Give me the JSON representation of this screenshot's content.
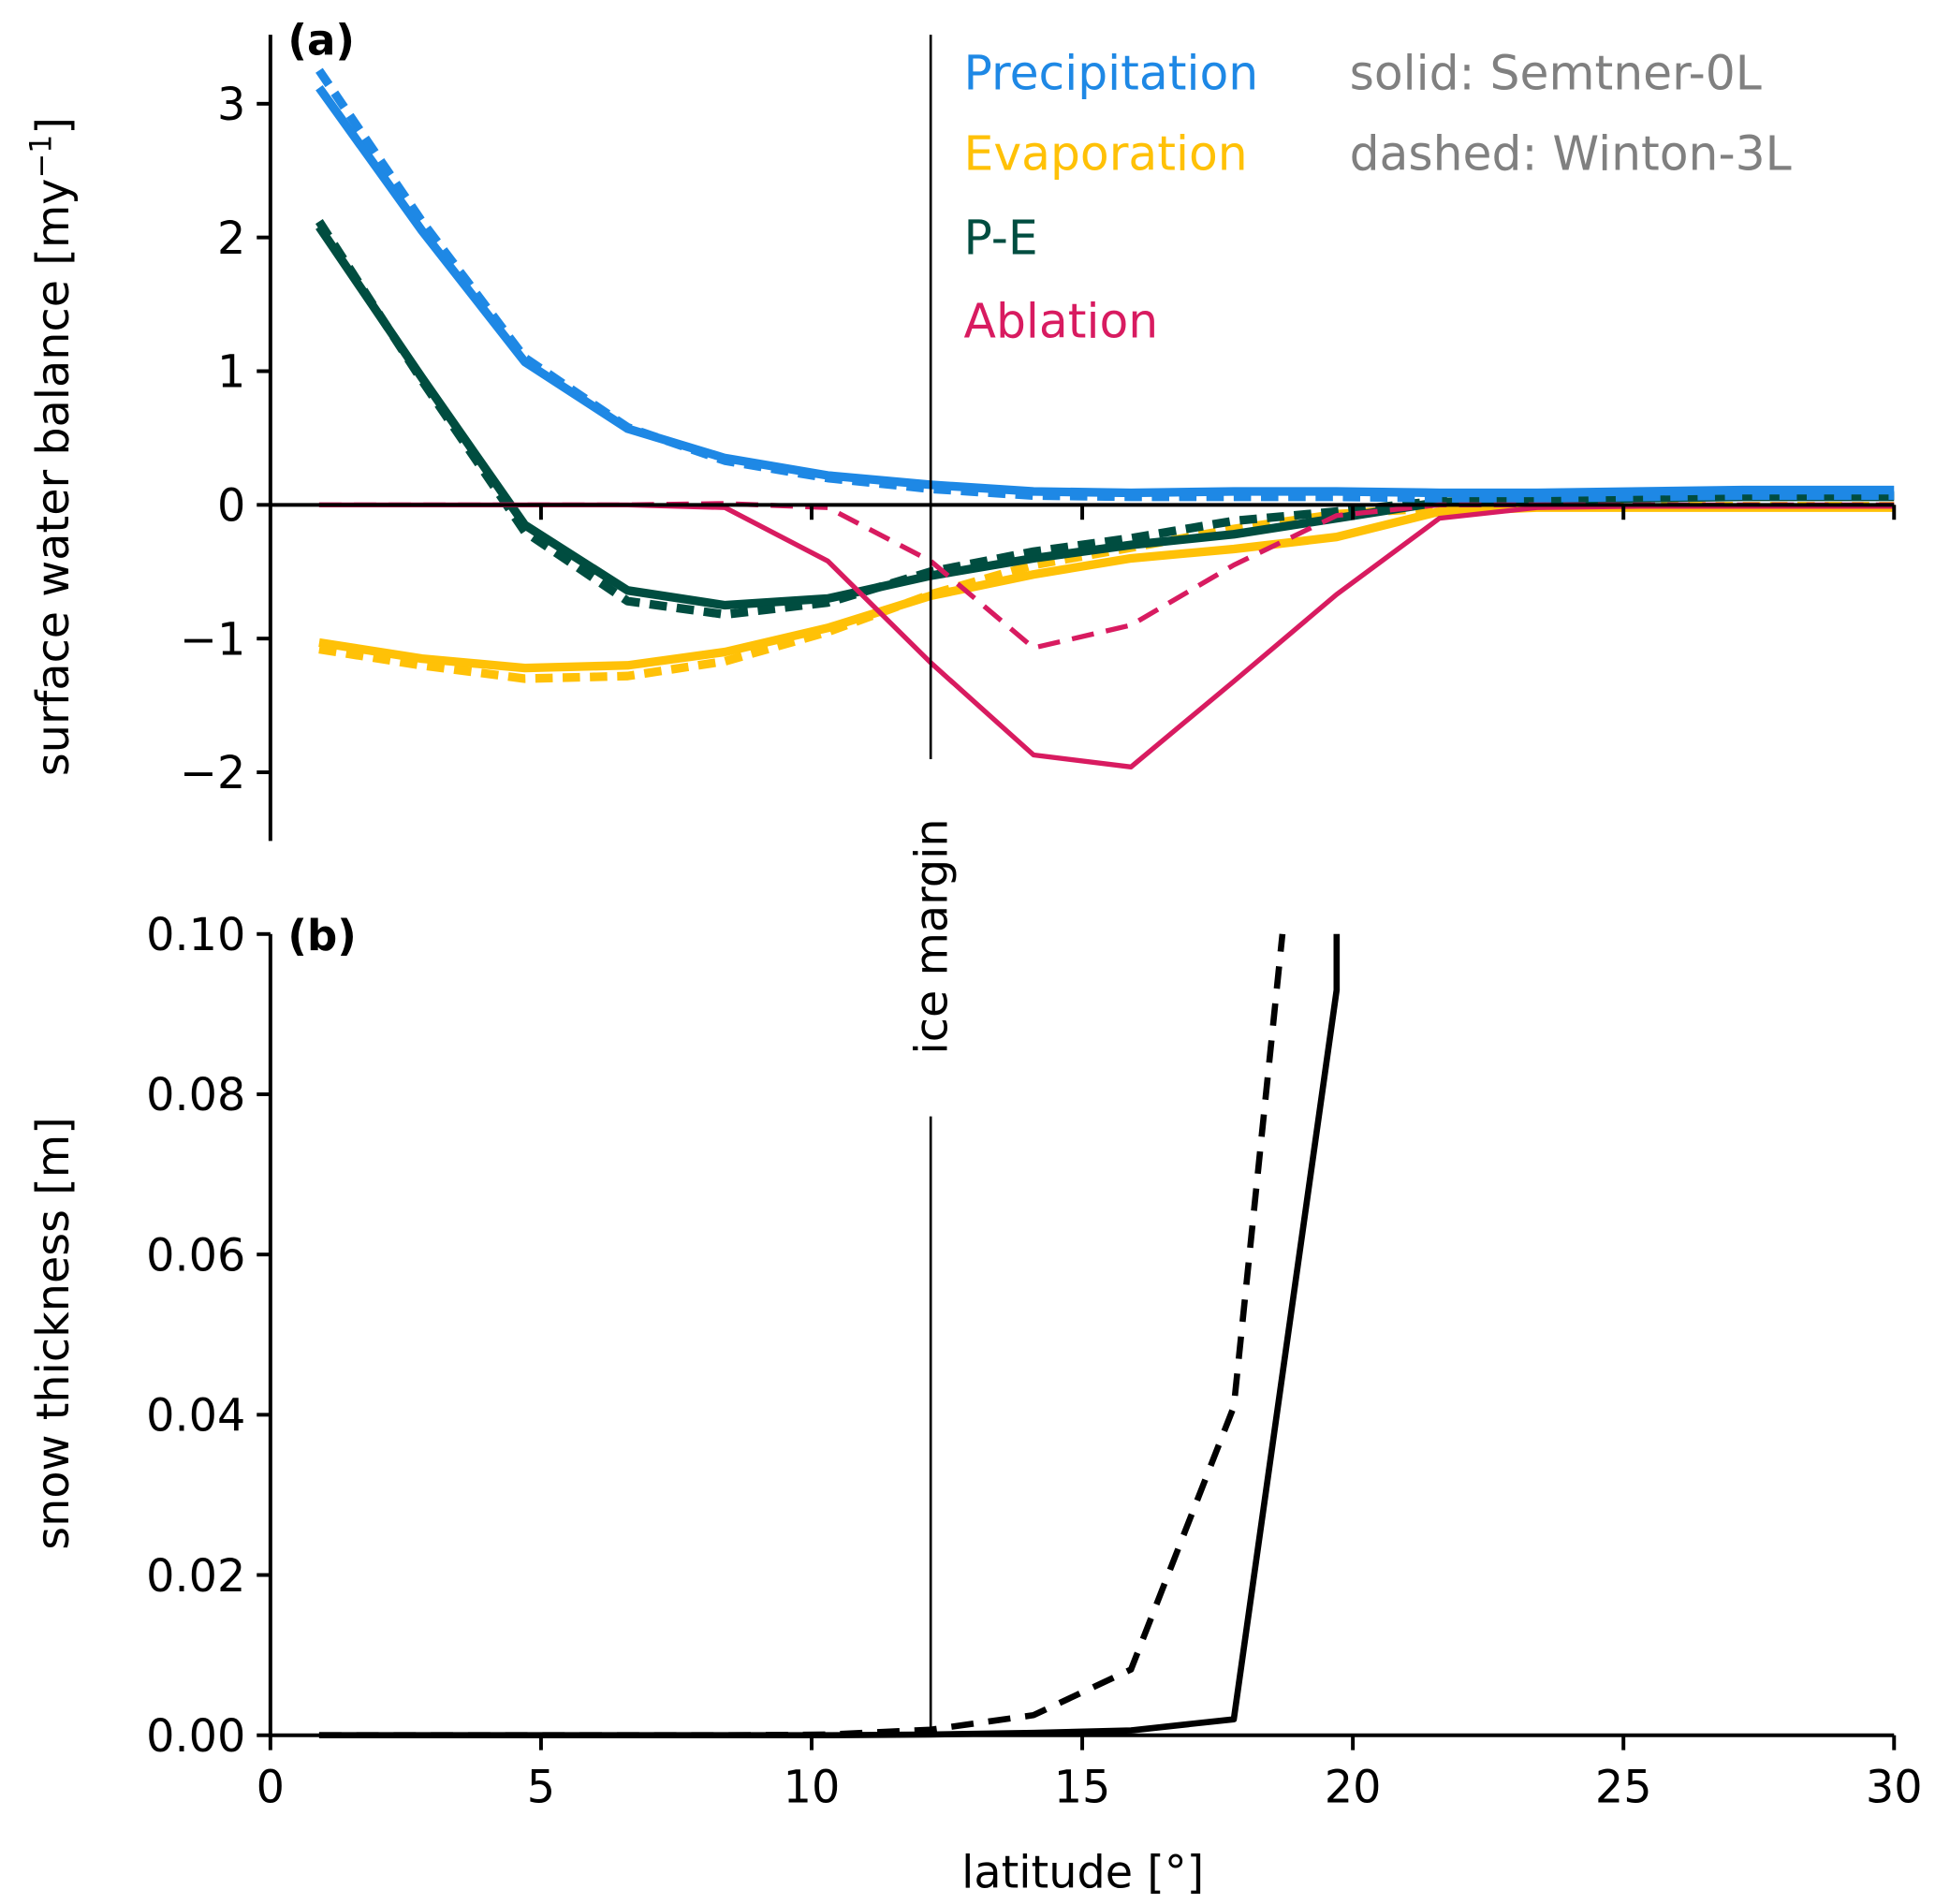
{
  "chart_data": [
    {
      "panel": "(a)",
      "type": "line",
      "xlabel": "",
      "ylabel": "surface water balance [my",
      "ylabel_sup": "−1",
      "ylabel_close": "]",
      "xlim": [
        0,
        30
      ],
      "ylim": [
        -2.5,
        3.5
      ],
      "yticks": [
        3,
        2,
        1,
        0,
        -1,
        -2
      ],
      "ytick_labels": [
        "3",
        "2",
        "1",
        "0",
        "−1",
        "−2"
      ],
      "xticks": [
        0,
        5,
        10,
        15,
        20,
        25,
        30
      ],
      "grid": false,
      "legend_placement": "top-right",
      "zero_line": true,
      "vline": {
        "x": 12.2,
        "label": "ice margin"
      },
      "x": [
        0.9,
        2.8,
        4.7,
        6.6,
        8.4,
        10.3,
        12.2,
        14.1,
        15.9,
        17.8,
        19.7,
        21.6,
        23.4,
        25.3,
        27.2,
        29.1,
        30.0
      ],
      "series": [
        {
          "name": "Precipitation",
          "style": "solid",
          "model": "Semtner-0L",
          "color": "#1e88e5",
          "values": [
            3.12,
            2.05,
            1.07,
            0.57,
            0.35,
            0.22,
            0.15,
            0.1,
            0.09,
            0.1,
            0.1,
            0.09,
            0.09,
            0.1,
            0.11,
            0.11,
            0.11
          ]
        },
        {
          "name": "Precipitation",
          "style": "dashed",
          "model": "Winton-3L",
          "color": "#1e88e5",
          "values": [
            3.25,
            2.12,
            1.1,
            0.58,
            0.33,
            0.2,
            0.12,
            0.07,
            0.06,
            0.06,
            0.06,
            0.05,
            0.05,
            0.06,
            0.07,
            0.07,
            0.07
          ]
        },
        {
          "name": "Evaporation",
          "style": "solid",
          "model": "Semtner-0L",
          "color": "#ffc107",
          "values": [
            -1.03,
            -1.15,
            -1.22,
            -1.2,
            -1.1,
            -0.92,
            -0.68,
            -0.52,
            -0.4,
            -0.33,
            -0.24,
            -0.05,
            -0.02,
            -0.02,
            -0.02,
            -0.02,
            -0.02
          ]
        },
        {
          "name": "Evaporation",
          "style": "dashed",
          "model": "Winton-3L",
          "color": "#ffc107",
          "values": [
            -1.08,
            -1.2,
            -1.3,
            -1.28,
            -1.17,
            -0.95,
            -0.67,
            -0.45,
            -0.32,
            -0.18,
            -0.07,
            -0.02,
            -0.01,
            -0.01,
            -0.01,
            -0.01,
            -0.01
          ]
        },
        {
          "name": "P-E",
          "style": "solid",
          "model": "Semtner-0L",
          "color": "#004d40",
          "values": [
            2.08,
            0.95,
            -0.15,
            -0.64,
            -0.75,
            -0.7,
            -0.53,
            -0.4,
            -0.3,
            -0.22,
            -0.1,
            0.02,
            0.04,
            0.05,
            0.06,
            0.06,
            0.06
          ]
        },
        {
          "name": "P-E",
          "style": "dashed",
          "model": "Winton-3L",
          "color": "#004d40",
          "values": [
            2.12,
            0.93,
            -0.2,
            -0.72,
            -0.82,
            -0.73,
            -0.5,
            -0.35,
            -0.25,
            -0.12,
            -0.05,
            0.03,
            0.05,
            0.06,
            0.07,
            0.07,
            0.07
          ]
        },
        {
          "name": "Ablation",
          "style": "solid",
          "model": "Semtner-0L",
          "color": "#d81b60",
          "values": [
            0.0,
            0.0,
            0.0,
            0.0,
            -0.02,
            -0.42,
            -1.18,
            -1.87,
            -1.96,
            -1.32,
            -0.67,
            -0.1,
            -0.02,
            -0.01,
            -0.01,
            -0.01,
            -0.01
          ]
        },
        {
          "name": "Ablation",
          "style": "dashed",
          "model": "Winton-3L",
          "color": "#d81b60",
          "values": [
            0.0,
            0.0,
            0.0,
            0.0,
            0.01,
            -0.02,
            -0.42,
            -1.07,
            -0.9,
            -0.45,
            -0.08,
            0.0,
            0.0,
            0.0,
            0.0,
            0.0,
            0.0
          ]
        }
      ],
      "legend": {
        "entries": [
          {
            "label": "Precipitation",
            "color": "#1e88e5"
          },
          {
            "label": "Evaporation",
            "color": "#ffc107"
          },
          {
            "label": "P-E",
            "color": "#004d40"
          },
          {
            "label": "Ablation",
            "color": "#d81b60"
          }
        ],
        "style_notes": [
          {
            "label": "solid: Semtner-0L",
            "color": "#808080"
          },
          {
            "label": "dashed: Winton-3L",
            "color": "#808080"
          }
        ]
      }
    },
    {
      "panel": "(b)",
      "type": "line",
      "xlabel": "latitude [°]",
      "ylabel": "snow thickness [m]",
      "xlim": [
        0,
        30
      ],
      "ylim": [
        0,
        0.1
      ],
      "yticks": [
        0.0,
        0.02,
        0.04,
        0.06,
        0.08,
        0.1
      ],
      "ytick_labels": [
        "0.00",
        "0.02",
        "0.04",
        "0.06",
        "0.08",
        "0.10"
      ],
      "xticks": [
        0,
        5,
        10,
        15,
        20,
        25,
        30
      ],
      "xtick_labels": [
        "0",
        "5",
        "10",
        "15",
        "20",
        "25",
        "30"
      ],
      "grid": false,
      "vline": {
        "x": 12.2,
        "label": "ice margin"
      },
      "series": [
        {
          "name": "snow thickness",
          "style": "solid",
          "model": "Semtner-0L",
          "color": "#000000",
          "x": [
            0.9,
            2.8,
            4.7,
            6.6,
            8.4,
            10.3,
            12.2,
            14.1,
            15.9,
            17.8,
            19.7,
            19.7
          ],
          "values": [
            0.0,
            0.0,
            0.0,
            0.0,
            0.0,
            0.0,
            0.0001,
            0.0003,
            0.0006,
            0.002,
            0.093,
            0.1
          ]
        },
        {
          "name": "snow thickness",
          "style": "dashed",
          "model": "Winton-3L",
          "color": "#000000",
          "x": [
            0.9,
            2.8,
            4.7,
            6.6,
            8.4,
            10.3,
            12.2,
            14.1,
            15.9,
            17.8,
            18.7
          ],
          "values": [
            0.0,
            0.0,
            0.0,
            0.0,
            0.0,
            0.0001,
            0.0007,
            0.0025,
            0.0082,
            0.041,
            0.1
          ]
        }
      ]
    }
  ]
}
